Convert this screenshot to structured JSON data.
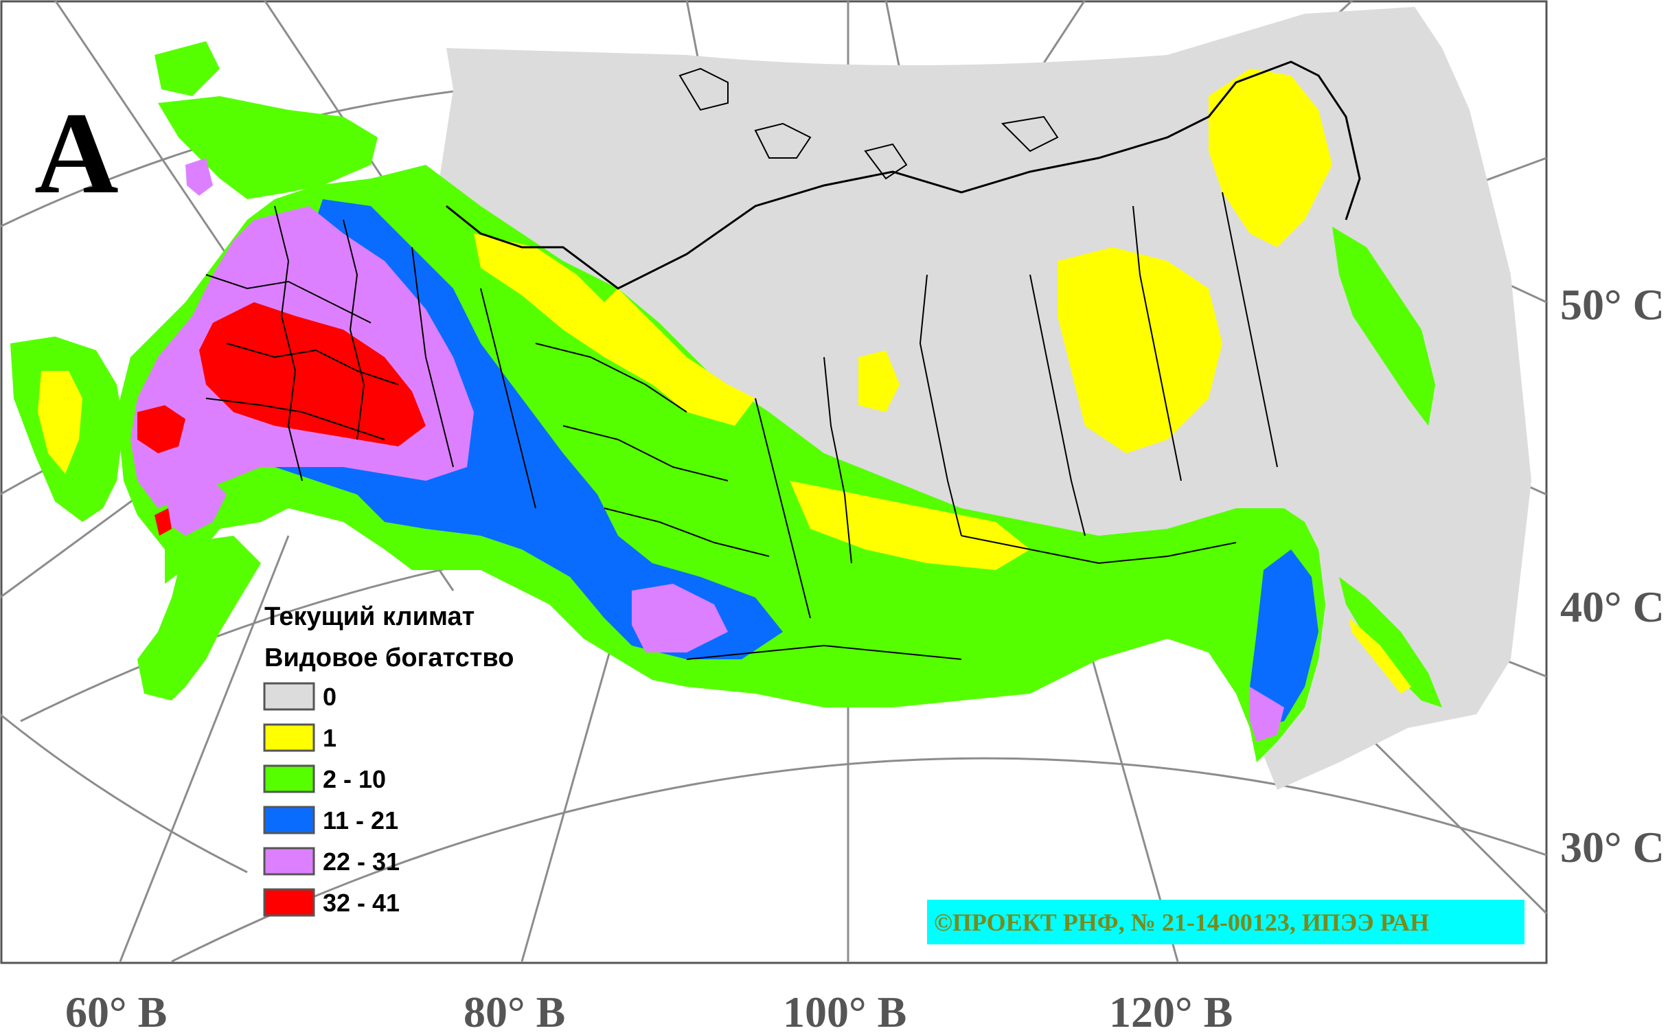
{
  "panel_letter": "A",
  "legend": {
    "title_line1": "Текущий климат",
    "title_line2": "Видовое богатство",
    "classes": [
      {
        "label": "0",
        "color": "#dcdcdc"
      },
      {
        "label": "1",
        "color": "#ffff00"
      },
      {
        "label": "2 - 10",
        "color": "#55ff00"
      },
      {
        "label": "11 - 21",
        "color": "#0a6cff"
      },
      {
        "label": "22 - 31",
        "color": "#dd80ff"
      },
      {
        "label": "32 - 41",
        "color": "#ff0000"
      }
    ]
  },
  "longitude_labels": [
    "60° В",
    "80° В",
    "100° В",
    "120° В"
  ],
  "latitude_labels": [
    "50° С",
    "40° С",
    "30° С"
  ],
  "copyright": {
    "text": "©ПРОЕКТ РНФ, № 21-14-00123, ИПЭЭ РАН",
    "background": "#00ffff"
  },
  "colors": {
    "graticule": "#8c8c8c",
    "background_region": "#dcdcdc",
    "border": "#000000"
  }
}
